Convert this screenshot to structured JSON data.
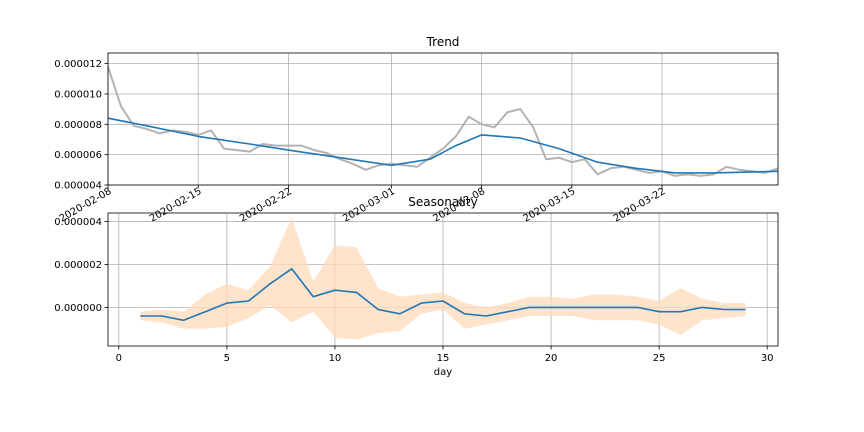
{
  "chart_data": [
    {
      "type": "line",
      "title": "Trend",
      "xlabel": "",
      "ylabel": "",
      "x_axis": "date",
      "xlim": [
        "2020-02-08",
        "2020-03-31"
      ],
      "ylim": [
        4e-06,
        1.27e-05
      ],
      "grid": true,
      "x_ticks": [
        "2020-02-08",
        "2020-02-15",
        "2020-02-22",
        "2020-03-01",
        "2020-03-08",
        "2020-03-15",
        "2020-03-22"
      ],
      "y_ticks": [
        "0.000004",
        "0.000006",
        "0.000008",
        "0.000010",
        "0.000012"
      ],
      "series": [
        {
          "color": "#b3b3b3",
          "x": [
            "2020-02-08",
            "2020-02-09",
            "2020-02-10",
            "2020-02-11",
            "2020-02-12",
            "2020-02-13",
            "2020-02-14",
            "2020-02-15",
            "2020-02-16",
            "2020-02-17",
            "2020-02-18",
            "2020-02-19",
            "2020-02-20",
            "2020-02-21",
            "2020-02-22",
            "2020-02-23",
            "2020-02-24",
            "2020-02-25",
            "2020-02-26",
            "2020-02-27",
            "2020-02-28",
            "2020-02-29",
            "2020-03-01",
            "2020-03-02",
            "2020-03-03",
            "2020-03-04",
            "2020-03-05",
            "2020-03-06",
            "2020-03-07",
            "2020-03-08",
            "2020-03-09",
            "2020-03-10",
            "2020-03-11",
            "2020-03-12",
            "2020-03-13",
            "2020-03-14",
            "2020-03-15",
            "2020-03-16",
            "2020-03-17",
            "2020-03-18",
            "2020-03-19",
            "2020-03-20",
            "2020-03-21",
            "2020-03-22",
            "2020-03-23",
            "2020-03-24",
            "2020-03-25",
            "2020-03-26",
            "2020-03-27",
            "2020-03-28",
            "2020-03-29",
            "2020-03-30",
            "2020-03-31"
          ],
          "values": [
            1.18e-05,
            9.2e-06,
            7.9e-06,
            7.7e-06,
            7.4e-06,
            7.6e-06,
            7.5e-06,
            7.3e-06,
            7.6e-06,
            6.4e-06,
            6.3e-06,
            6.2e-06,
            6.7e-06,
            6.6e-06,
            6.6e-06,
            6.6e-06,
            6.3e-06,
            6.1e-06,
            5.7e-06,
            5.4e-06,
            5e-06,
            5.3e-06,
            5.4e-06,
            5.3e-06,
            5.2e-06,
            5.8e-06,
            6.4e-06,
            7.2e-06,
            8.5e-06,
            8e-06,
            7.8e-06,
            8.8e-06,
            9e-06,
            7.8e-06,
            5.7e-06,
            5.8e-06,
            5.5e-06,
            5.7e-06,
            4.7e-06,
            5.1e-06,
            5.2e-06,
            5e-06,
            4.8e-06,
            4.9e-06,
            4.6e-06,
            4.7e-06,
            4.6e-06,
            4.7e-06,
            5.2e-06,
            5e-06,
            4.9e-06,
            4.8e-06,
            5.1e-06
          ]
        },
        {
          "color": "#1f77b4",
          "x": [
            "2020-02-08",
            "2020-02-11",
            "2020-02-15",
            "2020-02-19",
            "2020-02-22",
            "2020-02-26",
            "2020-03-01",
            "2020-03-04",
            "2020-03-06",
            "2020-03-08",
            "2020-03-11",
            "2020-03-14",
            "2020-03-17",
            "2020-03-20",
            "2020-03-23",
            "2020-03-26",
            "2020-03-31"
          ],
          "values": [
            8.4e-06,
            7.9e-06,
            7.2e-06,
            6.7e-06,
            6.3e-06,
            5.8e-06,
            5.3e-06,
            5.7e-06,
            6.6e-06,
            7.3e-06,
            7.1e-06,
            6.4e-06,
            5.5e-06,
            5.1e-06,
            4.8e-06,
            4.8e-06,
            4.9e-06
          ]
        }
      ]
    },
    {
      "type": "line",
      "title": "Seasonality",
      "xlabel": "day",
      "ylabel": "",
      "xlim": [
        -0.5,
        30.5
      ],
      "ylim": [
        -1.8e-06,
        4.4e-06
      ],
      "grid": true,
      "x_ticks": [
        "0",
        "5",
        "10",
        "15",
        "20",
        "25",
        "30"
      ],
      "y_ticks": [
        "0.000000",
        "0.000002",
        "0.000004"
      ],
      "series": [
        {
          "color": "#1f77b4",
          "band_color": "#ffdab9",
          "x": [
            1,
            2,
            3,
            4,
            5,
            6,
            7,
            8,
            9,
            10,
            11,
            12,
            13,
            14,
            15,
            16,
            17,
            18,
            19,
            20,
            21,
            22,
            23,
            24,
            25,
            26,
            27,
            28,
            29
          ],
          "values": [
            -4e-07,
            -4e-07,
            -6e-07,
            -2e-07,
            2e-07,
            3e-07,
            1.1e-06,
            1.8e-06,
            5e-07,
            8e-07,
            7e-07,
            -1e-07,
            -3e-07,
            2e-07,
            3e-07,
            -3e-07,
            -4e-07,
            -2e-07,
            0.0,
            0.0,
            0.0,
            0.0,
            0.0,
            0.0,
            -2e-07,
            -2e-07,
            0.0,
            -1e-07,
            -1e-07
          ],
          "lower": [
            -6e-07,
            -7e-07,
            -1e-06,
            -1e-06,
            -9e-07,
            -5e-07,
            1e-07,
            -7e-07,
            -2e-07,
            -1.4e-06,
            -1.5e-06,
            -1.2e-06,
            -1.1e-06,
            -3e-07,
            -1e-07,
            -1e-06,
            -8e-07,
            -6e-07,
            -4e-07,
            -4e-07,
            -4e-07,
            -6e-07,
            -6e-07,
            -6e-07,
            -8e-07,
            -1.3e-06,
            -6e-07,
            -5e-07,
            -4e-07
          ],
          "upper": [
            -2e-07,
            -1e-07,
            -2e-07,
            6e-07,
            1.1e-06,
            8e-07,
            1.9e-06,
            4.2e-06,
            1.2e-06,
            2.9e-06,
            2.8e-06,
            9e-07,
            5e-07,
            6e-07,
            7e-07,
            2e-07,
            0.0,
            2e-07,
            5e-07,
            5e-07,
            4e-07,
            6e-07,
            6e-07,
            5e-07,
            3e-07,
            9e-07,
            4e-07,
            2e-07,
            2e-07
          ]
        }
      ]
    }
  ]
}
